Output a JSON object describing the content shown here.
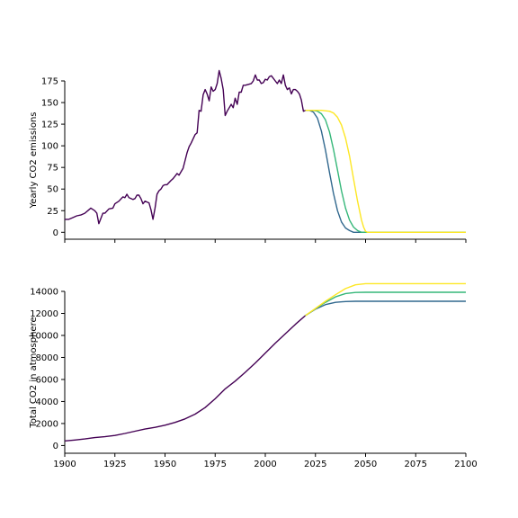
{
  "colors": {
    "history": "#440154",
    "scenario_early": "#31688e",
    "scenario_mid": "#35b779",
    "scenario_late": "#fde725",
    "axis": "#000000"
  },
  "chart_data": [
    {
      "type": "line",
      "ylabel": "Yearly CO2 emissions",
      "xlim": [
        1900,
        2100
      ],
      "ylim": [
        -8,
        175
      ],
      "yticks": [
        0,
        25,
        50,
        75,
        100,
        125,
        150,
        175
      ],
      "xticks": [
        1900,
        1925,
        1950,
        1975,
        2000,
        2025,
        2050,
        2075,
        2100
      ],
      "show_xtick_labels": false,
      "grid": false,
      "legend": "none",
      "series": [
        {
          "color": "#440154",
          "points": [
            [
              1900,
              15
            ],
            [
              1902,
              15
            ],
            [
              1904,
              17
            ],
            [
              1906,
              19
            ],
            [
              1908,
              20
            ],
            [
              1910,
              22
            ],
            [
              1912,
              26
            ],
            [
              1913,
              28
            ],
            [
              1915,
              25
            ],
            [
              1916,
              22
            ],
            [
              1917,
              10
            ],
            [
              1919,
              22
            ],
            [
              1920,
              22
            ],
            [
              1922,
              27
            ],
            [
              1924,
              28
            ],
            [
              1925,
              33
            ],
            [
              1927,
              36
            ],
            [
              1929,
              41
            ],
            [
              1930,
              40
            ],
            [
              1931,
              44
            ],
            [
              1932,
              40
            ],
            [
              1933,
              39
            ],
            [
              1934,
              38
            ],
            [
              1935,
              39
            ],
            [
              1936,
              43
            ],
            [
              1937,
              43
            ],
            [
              1938,
              39
            ],
            [
              1939,
              33
            ],
            [
              1940,
              36
            ],
            [
              1941,
              35
            ],
            [
              1942,
              34
            ],
            [
              1943,
              26
            ],
            [
              1944,
              15
            ],
            [
              1945,
              28
            ],
            [
              1946,
              44
            ],
            [
              1947,
              48
            ],
            [
              1948,
              50
            ],
            [
              1949,
              54
            ],
            [
              1950,
              55
            ],
            [
              1951,
              55
            ],
            [
              1953,
              60
            ],
            [
              1954,
              62
            ],
            [
              1955,
              65
            ],
            [
              1956,
              68
            ],
            [
              1957,
              66
            ],
            [
              1958,
              70
            ],
            [
              1959,
              74
            ],
            [
              1960,
              83
            ],
            [
              1961,
              92
            ],
            [
              1962,
              99
            ],
            [
              1963,
              103
            ],
            [
              1964,
              108
            ],
            [
              1965,
              113
            ],
            [
              1966,
              115
            ],
            [
              1967,
              141
            ],
            [
              1968,
              140
            ],
            [
              1969,
              159
            ],
            [
              1970,
              165
            ],
            [
              1971,
              160
            ],
            [
              1972,
              152
            ],
            [
              1973,
              168
            ],
            [
              1974,
              163
            ],
            [
              1975,
              165
            ],
            [
              1976,
              172
            ],
            [
              1977,
              187
            ],
            [
              1978,
              178
            ],
            [
              1979,
              165
            ],
            [
              1980,
              135
            ],
            [
              1981,
              140
            ],
            [
              1982,
              144
            ],
            [
              1983,
              148
            ],
            [
              1984,
              144
            ],
            [
              1985,
              155
            ],
            [
              1986,
              148
            ],
            [
              1987,
              162
            ],
            [
              1988,
              162
            ],
            [
              1989,
              170
            ],
            [
              1990,
              170
            ],
            [
              1993,
              172
            ],
            [
              1994,
              175
            ],
            [
              1995,
              182
            ],
            [
              1996,
              176
            ],
            [
              1997,
              176
            ],
            [
              1998,
              172
            ],
            [
              1999,
              173
            ],
            [
              2000,
              177
            ],
            [
              2001,
              176
            ],
            [
              2002,
              180
            ],
            [
              2003,
              181
            ],
            [
              2004,
              178
            ],
            [
              2005,
              175
            ],
            [
              2006,
              172
            ],
            [
              2007,
              176
            ],
            [
              2008,
              172
            ],
            [
              2009,
              182
            ],
            [
              2010,
              170
            ],
            [
              2011,
              165
            ],
            [
              2012,
              167
            ],
            [
              2013,
              160
            ],
            [
              2014,
              165
            ],
            [
              2015,
              165
            ],
            [
              2016,
              163
            ],
            [
              2017,
              160
            ],
            [
              2018,
              153
            ],
            [
              2019,
              140
            ],
            [
              2020,
              141
            ]
          ]
        },
        {
          "color": "#31688e",
          "points": [
            [
              2020,
              141
            ],
            [
              2022,
              141
            ],
            [
              2024,
              139
            ],
            [
              2026,
              132
            ],
            [
              2028,
              117
            ],
            [
              2030,
              95
            ],
            [
              2032,
              69
            ],
            [
              2034,
              45
            ],
            [
              2036,
              25
            ],
            [
              2038,
              12
            ],
            [
              2040,
              5
            ],
            [
              2042,
              2
            ],
            [
              2044,
              0
            ],
            [
              2046,
              0
            ],
            [
              2060,
              0
            ],
            [
              2080,
              0
            ],
            [
              2100,
              0
            ]
          ]
        },
        {
          "color": "#35b779",
          "points": [
            [
              2020,
              141
            ],
            [
              2024,
              141
            ],
            [
              2026,
              140
            ],
            [
              2028,
              137
            ],
            [
              2030,
              130
            ],
            [
              2032,
              116
            ],
            [
              2034,
              96
            ],
            [
              2036,
              72
            ],
            [
              2038,
              48
            ],
            [
              2040,
              28
            ],
            [
              2042,
              14
            ],
            [
              2044,
              6
            ],
            [
              2046,
              2
            ],
            [
              2048,
              0
            ],
            [
              2060,
              0
            ],
            [
              2080,
              0
            ],
            [
              2100,
              0
            ]
          ]
        },
        {
          "color": "#fde725",
          "points": [
            [
              2020,
              141
            ],
            [
              2028,
              141
            ],
            [
              2032,
              140
            ],
            [
              2034,
              138
            ],
            [
              2036,
              133
            ],
            [
              2038,
              124
            ],
            [
              2040,
              109
            ],
            [
              2042,
              88
            ],
            [
              2044,
              62
            ],
            [
              2046,
              36
            ],
            [
              2048,
              14
            ],
            [
              2049,
              6
            ],
            [
              2050,
              1
            ],
            [
              2051,
              0
            ],
            [
              2060,
              0
            ],
            [
              2080,
              0
            ],
            [
              2100,
              0
            ]
          ]
        }
      ]
    },
    {
      "type": "line",
      "ylabel": "Total CO2 in atmosphere",
      "xlim": [
        1900,
        2100
      ],
      "ylim": [
        -700,
        14000
      ],
      "yticks": [
        0,
        2000,
        4000,
        6000,
        8000,
        10000,
        12000,
        14000
      ],
      "xticks": [
        1900,
        1925,
        1950,
        1975,
        2000,
        2025,
        2050,
        2075,
        2100
      ],
      "show_xtick_labels": true,
      "grid": false,
      "legend": "none",
      "series": [
        {
          "color": "#440154",
          "points": [
            [
              1900,
              420
            ],
            [
              1905,
              500
            ],
            [
              1910,
              600
            ],
            [
              1915,
              720
            ],
            [
              1920,
              800
            ],
            [
              1925,
              920
            ],
            [
              1930,
              1100
            ],
            [
              1935,
              1300
            ],
            [
              1940,
              1500
            ],
            [
              1945,
              1650
            ],
            [
              1950,
              1850
            ],
            [
              1955,
              2100
            ],
            [
              1960,
              2420
            ],
            [
              1965,
              2850
            ],
            [
              1970,
              3450
            ],
            [
              1975,
              4250
            ],
            [
              1980,
              5150
            ],
            [
              1985,
              5850
            ],
            [
              1990,
              6650
            ],
            [
              1995,
              7500
            ],
            [
              2000,
              8400
            ],
            [
              2005,
              9300
            ],
            [
              2010,
              10150
            ],
            [
              2015,
              11000
            ],
            [
              2020,
              11800
            ]
          ]
        },
        {
          "color": "#31688e",
          "points": [
            [
              2020,
              11800
            ],
            [
              2025,
              12380
            ],
            [
              2030,
              12800
            ],
            [
              2035,
              13000
            ],
            [
              2040,
              13080
            ],
            [
              2045,
              13100
            ],
            [
              2060,
              13100
            ],
            [
              2080,
              13100
            ],
            [
              2100,
              13100
            ]
          ]
        },
        {
          "color": "#35b779",
          "points": [
            [
              2020,
              11800
            ],
            [
              2025,
              12420
            ],
            [
              2030,
              13000
            ],
            [
              2035,
              13500
            ],
            [
              2040,
              13800
            ],
            [
              2045,
              13900
            ],
            [
              2050,
              13920
            ],
            [
              2060,
              13920
            ],
            [
              2080,
              13920
            ],
            [
              2100,
              13920
            ]
          ]
        },
        {
          "color": "#fde725",
          "points": [
            [
              2020,
              11800
            ],
            [
              2025,
              12450
            ],
            [
              2030,
              13100
            ],
            [
              2035,
              13700
            ],
            [
              2040,
              14250
            ],
            [
              2045,
              14600
            ],
            [
              2050,
              14700
            ],
            [
              2060,
              14700
            ],
            [
              2080,
              14700
            ],
            [
              2100,
              14700
            ]
          ]
        }
      ]
    }
  ]
}
